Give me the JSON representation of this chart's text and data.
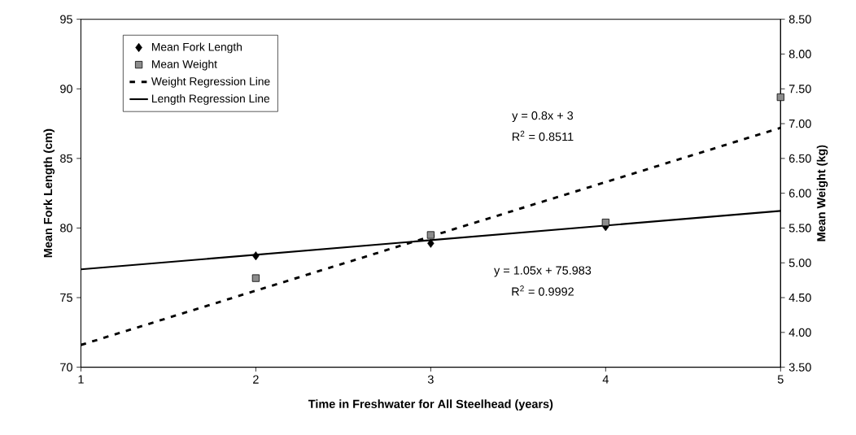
{
  "chart_data": {
    "type": "scatter",
    "xlabel": "Time in Freshwater for All Steelhead (years)",
    "ylabel": "Mean Fork Length (cm)",
    "y2label": "Mean Weight (kg)",
    "xlim": [
      1,
      5
    ],
    "xticks": [
      1,
      2,
      3,
      4,
      5
    ],
    "ylim": [
      70,
      95
    ],
    "yticks": [
      70,
      75,
      80,
      85,
      90,
      95
    ],
    "y2lim": [
      3.5,
      8.5
    ],
    "y2ticks": [
      {
        "value": 3.5,
        "label": "3.50"
      },
      {
        "value": 4.0,
        "label": "4.00"
      },
      {
        "value": 4.5,
        "label": "4.50"
      },
      {
        "value": 5.0,
        "label": "5.00"
      },
      {
        "value": 5.5,
        "label": "5.50"
      },
      {
        "value": 6.0,
        "label": "6.00"
      },
      {
        "value": 6.5,
        "label": "6.50"
      },
      {
        "value": 7.0,
        "label": "7.00"
      },
      {
        "value": 7.5,
        "label": "7.50"
      },
      {
        "value": 8.0,
        "label": "8.00"
      },
      {
        "value": 8.5,
        "label": "8.50"
      }
    ],
    "legend": "top left",
    "series": [
      {
        "name": "Mean Fork Length",
        "marker": "diamond",
        "color": "#000000",
        "x": [
          2,
          3,
          4
        ],
        "values": [
          78.0,
          78.9,
          80.1
        ]
      },
      {
        "name": "Mean Weight",
        "marker": "square",
        "axis": "y2",
        "color": "#8c8c8c",
        "x": [
          2,
          3,
          4,
          5
        ],
        "values": [
          4.78,
          5.4,
          5.58,
          7.38
        ]
      },
      {
        "name": "Weight Regression Line",
        "type": "line",
        "line_style": "dashed",
        "axis": "y2",
        "color": "#000000",
        "x": [
          1,
          5
        ],
        "values": [
          3.82,
          6.94
        ]
      },
      {
        "name": "Length Regression Line",
        "type": "line",
        "line_style": "solid",
        "color": "#000000",
        "x": [
          1,
          5
        ],
        "values": [
          77.03,
          81.23
        ]
      }
    ],
    "annotations": [
      "y = 0.8x + 3",
      "R$^{2}$ = 0.8511",
      "y = 1.05x + 75.983",
      "R$^{2}$ = 0.9992"
    ]
  }
}
